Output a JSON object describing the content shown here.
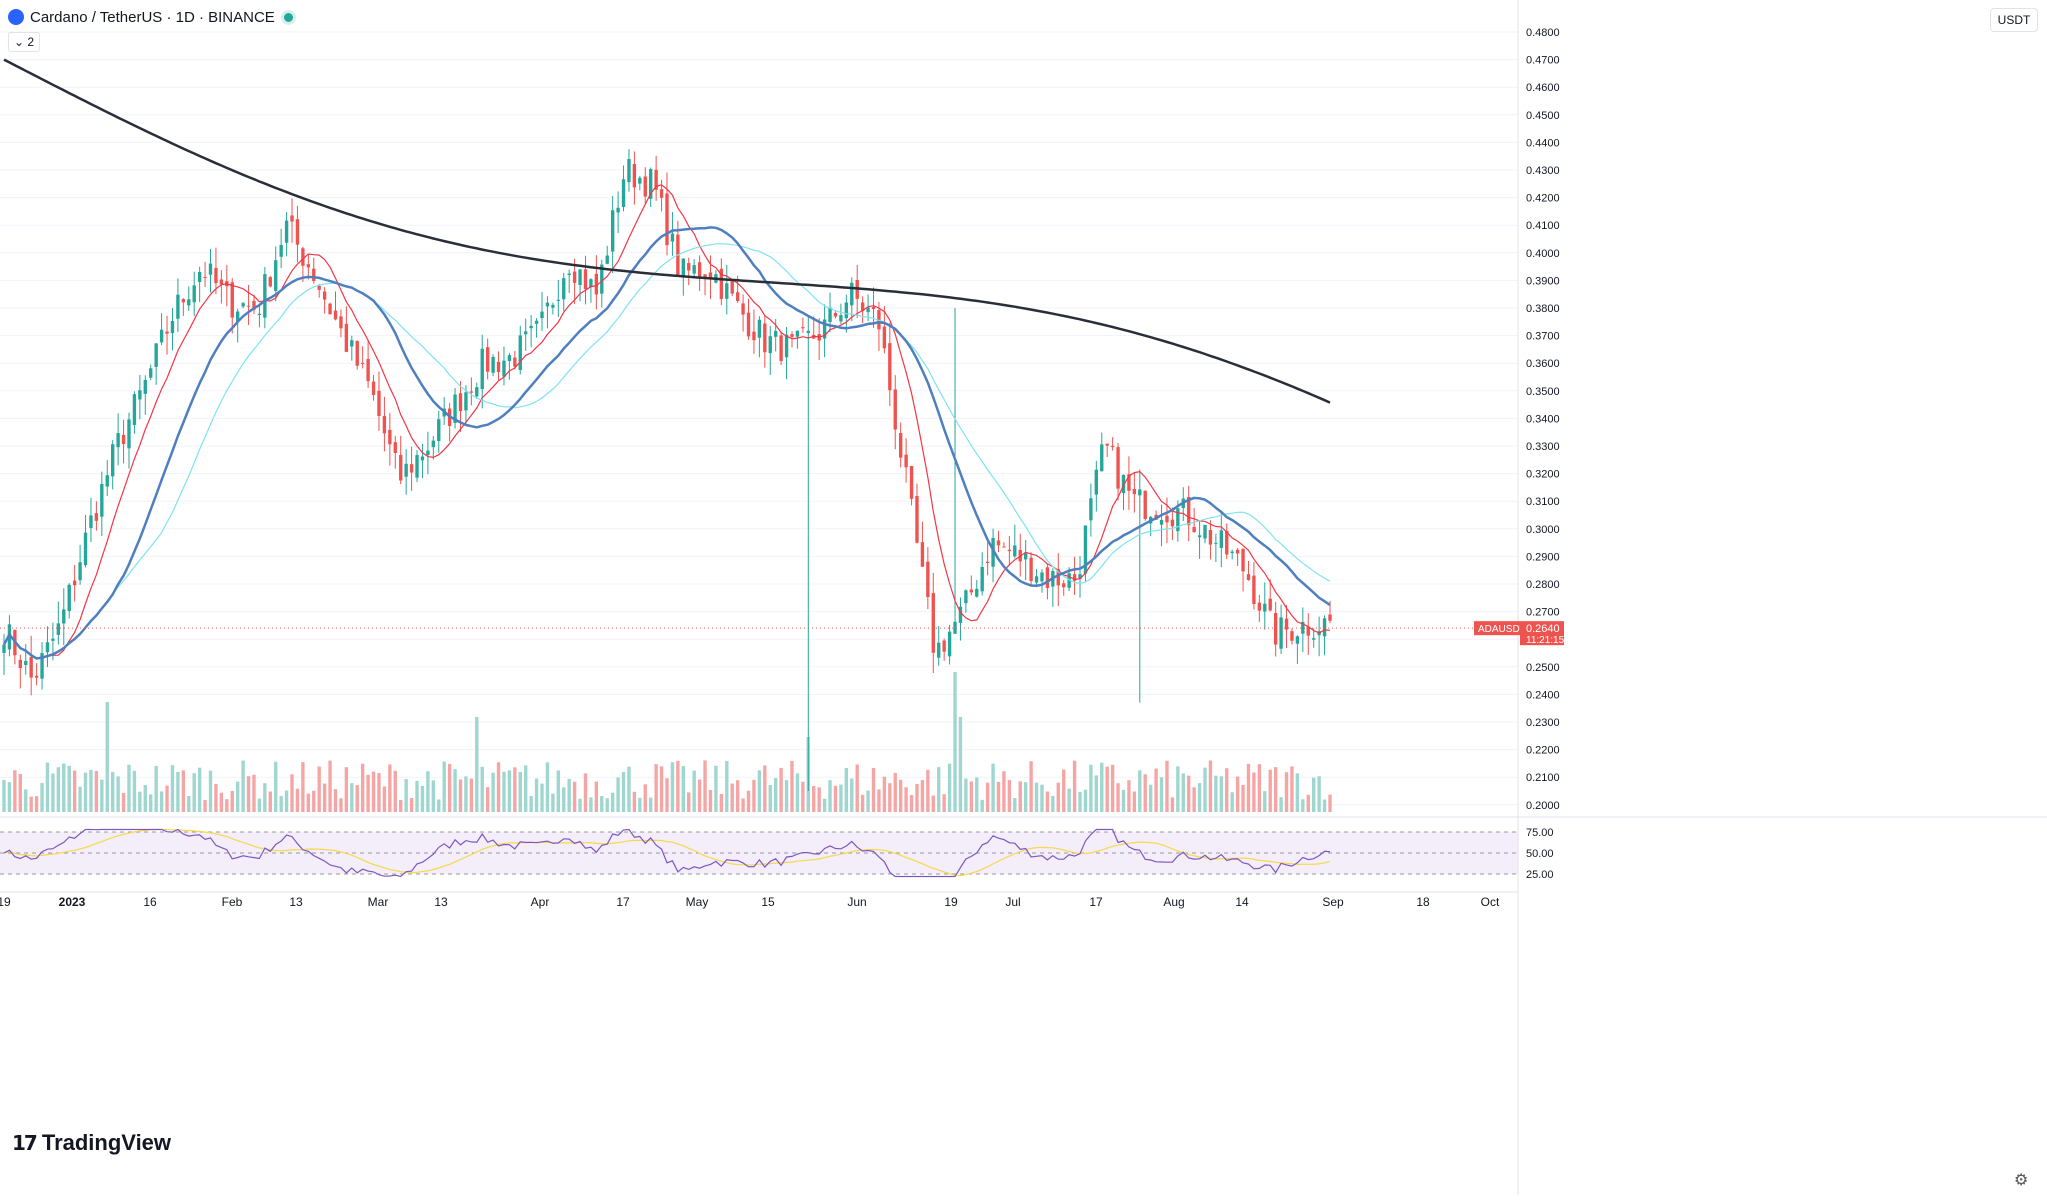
{
  "header": {
    "symbol": "Cardano / TetherUS · 1D · BINANCE",
    "indicator_toggle": "2",
    "currency": "USDT",
    "logo_text": "TradingView"
  },
  "colors": {
    "up": "#26a69a",
    "down": "#ef5350",
    "ma_fast": "#f23645",
    "ma_mid": "#4f7fbf",
    "ma_light": "#7fe3ef",
    "ma_slow": "#2a2e39",
    "rsi": "#7e57c2",
    "rsi_ma": "#f5d94a"
  },
  "chart_data": {
    "type": "candlestick",
    "symbol": "ADAUSDT",
    "current_price": "0.2640",
    "countdown": "11:21:15",
    "y_ticks": [
      "0.4800",
      "0.4700",
      "0.4600",
      "0.4500",
      "0.4400",
      "0.4300",
      "0.4200",
      "0.4100",
      "0.4000",
      "0.3900",
      "0.3800",
      "0.3700",
      "0.3600",
      "0.3500",
      "0.3400",
      "0.3300",
      "0.3200",
      "0.3100",
      "0.3000",
      "0.2900",
      "0.2800",
      "0.2700",
      "0.2600",
      "0.2500",
      "0.2400",
      "0.2300",
      "0.2200",
      "0.2100",
      "0.2000"
    ],
    "rsi_ticks": [
      "75.00",
      "50.00",
      "25.00"
    ],
    "x_ticks": [
      "19",
      "2023",
      "16",
      "Feb",
      "13",
      "Mar",
      "13",
      "Apr",
      "17",
      "May",
      "15",
      "Jun",
      "19",
      "Jul",
      "17",
      "Aug",
      "14",
      "Sep",
      "18",
      "Oct"
    ],
    "ylim": [
      0.2,
      0.48
    ],
    "rsi_ylim": [
      20,
      80
    ],
    "series_anchors": [
      [
        0.264,
        0.255
      ],
      [
        0.245,
        0.262
      ],
      [
        0.265,
        0.295
      ],
      [
        0.3,
        0.325
      ],
      [
        0.33,
        0.35
      ],
      [
        0.352,
        0.378
      ],
      [
        0.378,
        0.395
      ],
      [
        0.395,
        0.402
      ],
      [
        0.382,
        0.37
      ],
      [
        0.38,
        0.398
      ],
      [
        0.41,
        0.405
      ],
      [
        0.392,
        0.385
      ],
      [
        0.37,
        0.355
      ],
      [
        0.35,
        0.332
      ],
      [
        0.318,
        0.305
      ],
      [
        0.33,
        0.325
      ],
      [
        0.345,
        0.344
      ],
      [
        0.36,
        0.346
      ],
      [
        0.362,
        0.372
      ],
      [
        0.372,
        0.385
      ],
      [
        0.398,
        0.39
      ],
      [
        0.385,
        0.395
      ],
      [
        0.43,
        0.455
      ],
      [
        0.425,
        0.398
      ],
      [
        0.392,
        0.41
      ],
      [
        0.395,
        0.39
      ],
      [
        0.38,
        0.365
      ],
      [
        0.368,
        0.372
      ],
      [
        0.365,
        0.36
      ],
      [
        0.372,
        0.38
      ],
      [
        0.385,
        0.375
      ],
      [
        0.375,
        0.355
      ],
      [
        0.315,
        0.258
      ],
      [
        0.255,
        0.252
      ],
      [
        0.27,
        0.3
      ],
      [
        0.295,
        0.27
      ],
      [
        0.29,
        0.295
      ],
      [
        0.282,
        0.285
      ],
      [
        0.282,
        0.29
      ],
      [
        0.33,
        0.318
      ],
      [
        0.31,
        0.315
      ],
      [
        0.308,
        0.312
      ],
      [
        0.305,
        0.302
      ],
      [
        0.295,
        0.298
      ],
      [
        0.285,
        0.26
      ],
      [
        0.262,
        0.268
      ],
      [
        0.265,
        0.272
      ],
      [
        0.266,
        0.264
      ]
    ]
  }
}
